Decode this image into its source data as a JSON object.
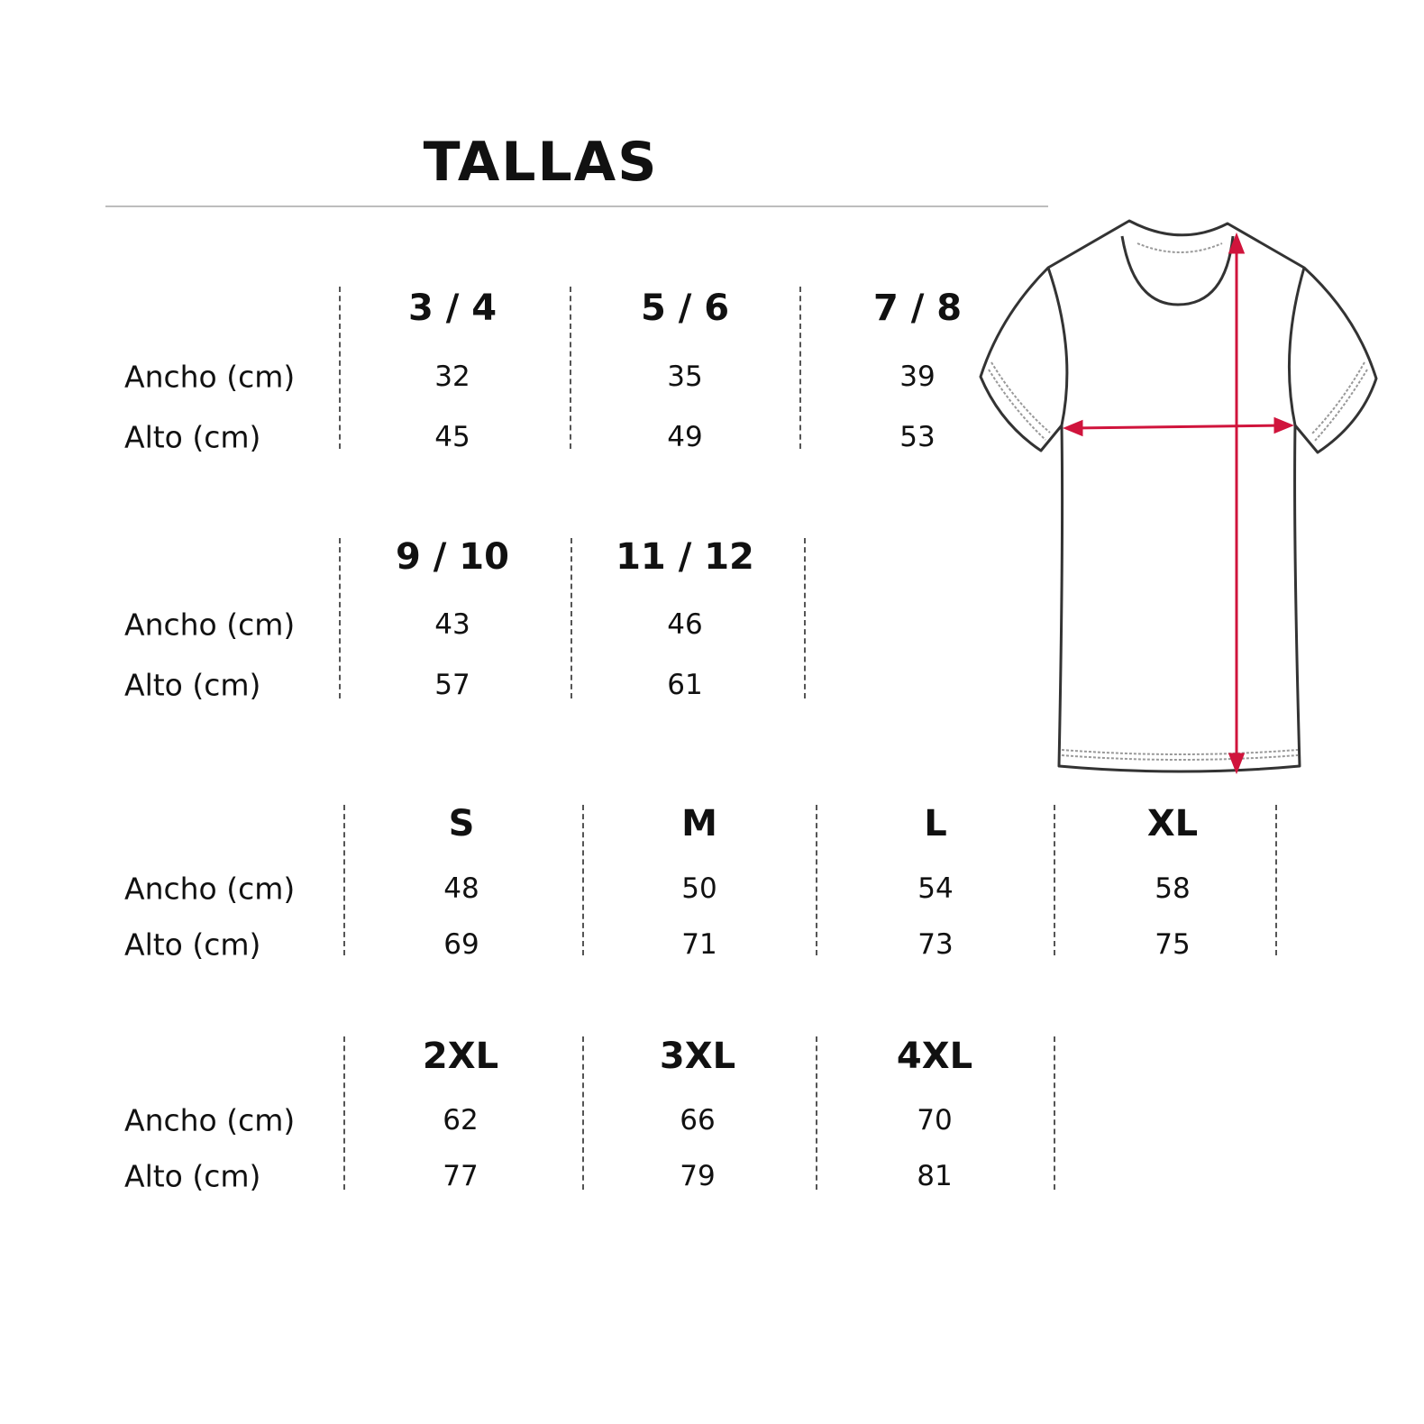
{
  "title": "TALLAS",
  "row_labels": {
    "width": "Ancho (cm)",
    "height": "Alto (cm)"
  },
  "groups": [
    {
      "sizes": [
        {
          "size": "3 / 4",
          "ancho": "32",
          "alto": "45"
        },
        {
          "size": "5 / 6",
          "ancho": "35",
          "alto": "49"
        },
        {
          "size": "7 / 8",
          "ancho": "39",
          "alto": "53"
        }
      ]
    },
    {
      "sizes": [
        {
          "size": "9 / 10",
          "ancho": "43",
          "alto": "57"
        },
        {
          "size": "11 / 12",
          "ancho": "46",
          "alto": "61"
        }
      ]
    },
    {
      "sizes": [
        {
          "size": "S",
          "ancho": "48",
          "alto": "69"
        },
        {
          "size": "M",
          "ancho": "50",
          "alto": "71"
        },
        {
          "size": "L",
          "ancho": "54",
          "alto": "73"
        },
        {
          "size": "XL",
          "ancho": "58",
          "alto": "75"
        }
      ]
    },
    {
      "sizes": [
        {
          "size": "2XL",
          "ancho": "62",
          "alto": "77"
        },
        {
          "size": "3XL",
          "ancho": "66",
          "alto": "79"
        },
        {
          "size": "4XL",
          "ancho": "70",
          "alto": "81"
        }
      ]
    }
  ],
  "illustration": {
    "icon": "tshirt-measurement-icon",
    "arrow_color": "#d0143c",
    "outline_color": "#333333"
  }
}
